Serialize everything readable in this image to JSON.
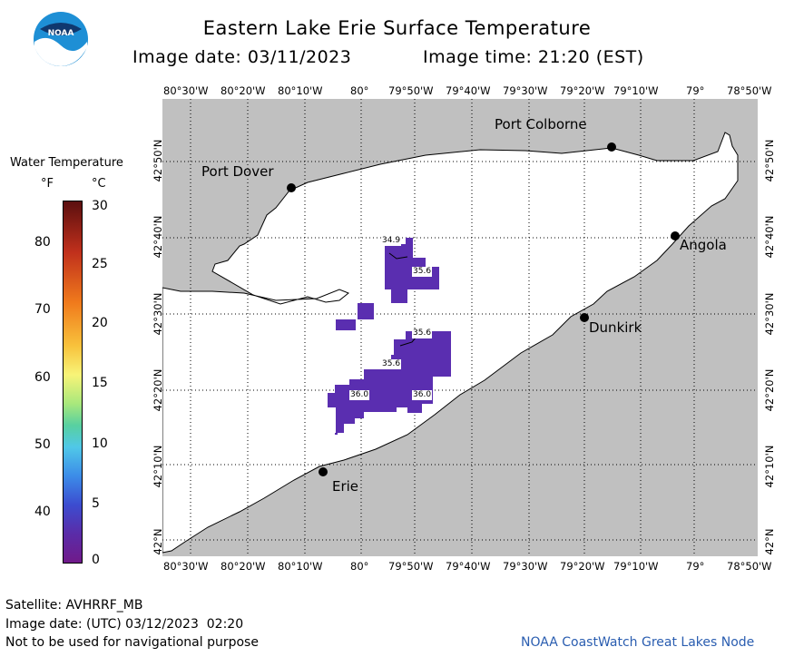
{
  "header": {
    "title": "Eastern Lake Erie Surface Temperature",
    "image_date_label": "Image date: 03/11/2023",
    "image_time_label": "Image time: 21:20 (EST)"
  },
  "logo": {
    "text": "NOAA"
  },
  "axes": {
    "longitude_ticks": [
      "80°30'W",
      "80°20'W",
      "80°10'W",
      "80°",
      "79°50'W",
      "79°40'W",
      "79°30'W",
      "79°20'W",
      "79°10'W",
      "79°",
      "78°50'W"
    ],
    "latitude_ticks": [
      "42°50'N",
      "42°40'N",
      "42°30'N",
      "42°20'N",
      "42°10'N",
      "42°N"
    ]
  },
  "cities": [
    {
      "name": "Port Colborne"
    },
    {
      "name": "Port Dover"
    },
    {
      "name": "Angola"
    },
    {
      "name": "Dunkirk"
    },
    {
      "name": "Erie"
    }
  ],
  "isotherm_labels": [
    "34.9",
    "35.6",
    "35.6",
    "35.6",
    "36.0",
    "36.0"
  ],
  "legend": {
    "title": "Water Temperature",
    "unit_f": "°F",
    "unit_c": "°C",
    "fahrenheit_labels": [
      "80",
      "70",
      "60",
      "50",
      "40"
    ],
    "celsius_labels": [
      "30",
      "25",
      "20",
      "15",
      "10",
      "5",
      "0"
    ],
    "colors": [
      "#5b0f0f",
      "#c0301c",
      "#f07a1c",
      "#f8c23c",
      "#f8f478",
      "#a8e87c",
      "#58d0a0",
      "#50c8e8",
      "#3c8ce8",
      "#3c4cd0",
      "#5a2ca8",
      "#701a8a"
    ]
  },
  "colors": {
    "land": "#c0c0c0",
    "water": "#ffffff",
    "cold_water": "#5a2eb0"
  },
  "footer": {
    "satellite": "Satellite: AVHRRF_MB",
    "utc_date": "Image date: (UTC) 03/12/2023  02:20",
    "disclaimer": "Not to be used for navigational purpose",
    "credit": "NOAA CoastWatch Great Lakes Node"
  }
}
